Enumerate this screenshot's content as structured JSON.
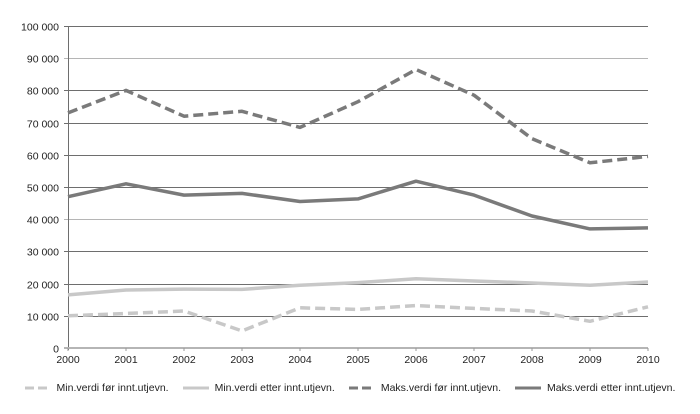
{
  "chart_data": {
    "type": "line",
    "title": "",
    "xlabel": "",
    "ylabel": "",
    "x": [
      "2000",
      "2001",
      "2002",
      "2003",
      "2004",
      "2005",
      "2006",
      "2007",
      "2008",
      "2009",
      "2010"
    ],
    "ylim": [
      0,
      100000
    ],
    "yticks": [
      0,
      10000,
      20000,
      30000,
      40000,
      50000,
      60000,
      70000,
      80000,
      90000,
      100000
    ],
    "ytick_labels": [
      "0",
      "10 000",
      "20 000",
      "30 000",
      "40 000",
      "50 000",
      "60 000",
      "70 000",
      "80 000",
      "90 000",
      "100 000"
    ],
    "grid": true,
    "legend_position": "bottom",
    "series": [
      {
        "name": "Min.verdi før innt.utjevn.",
        "style": "dashed",
        "color": "#c8c8c8",
        "values": [
          10000,
          10700,
          11500,
          5300,
          12500,
          12000,
          13200,
          12300,
          11500,
          8300,
          12800
        ]
      },
      {
        "name": "Min.verdi etter innt.utjevn.",
        "style": "solid",
        "color": "#c8c8c8",
        "values": [
          16500,
          18000,
          18300,
          18200,
          19500,
          20300,
          21500,
          20800,
          20200,
          19500,
          20500
        ]
      },
      {
        "name": "Maks.verdi før innt.utjevn.",
        "style": "dashed",
        "color": "#7a7a7a",
        "values": [
          73000,
          80000,
          72000,
          73500,
          68500,
          76500,
          86500,
          78500,
          65000,
          57500,
          59500
        ]
      },
      {
        "name": "Maks.verdi etter innt.utjevn.",
        "style": "solid",
        "color": "#7a7a7a",
        "values": [
          47000,
          51000,
          47500,
          48000,
          45500,
          46300,
          51800,
          47500,
          41000,
          37000,
          37300
        ]
      }
    ]
  },
  "legend": {
    "items": [
      {
        "label": "Min.verdi før innt.utjevn."
      },
      {
        "label": "Min.verdi etter innt.utjevn."
      },
      {
        "label": "Maks.verdi før innt.utjevn."
      },
      {
        "label": "Maks.verdi etter innt.utjevn."
      }
    ]
  }
}
